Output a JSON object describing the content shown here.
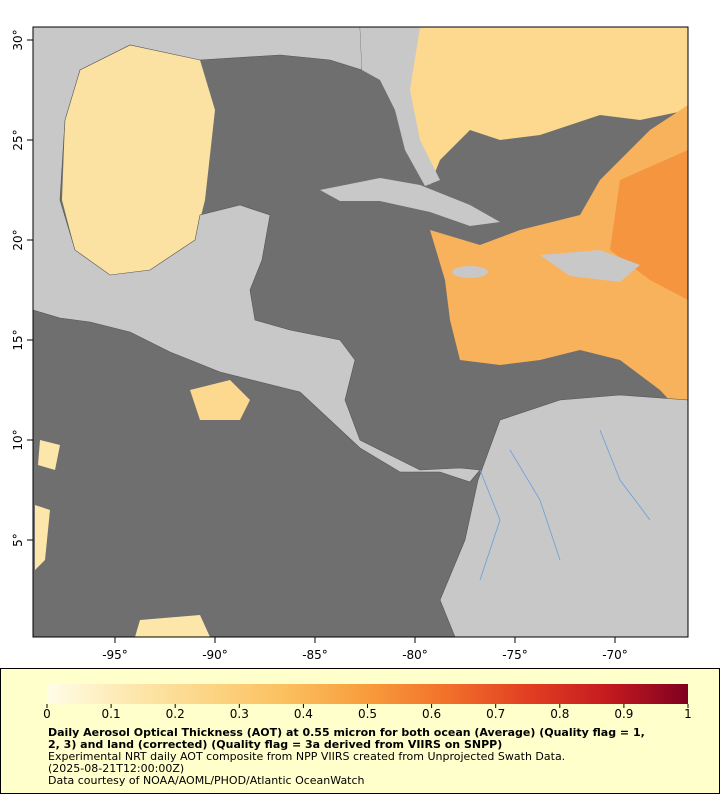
{
  "map": {
    "xlim": [
      -99.1,
      -66.35
    ],
    "ylim": [
      0.15,
      30.65
    ],
    "xticks": [
      {
        "value": -95,
        "label": "-95°"
      },
      {
        "value": -90,
        "label": "-90°"
      },
      {
        "value": -85,
        "label": "-85°"
      },
      {
        "value": -80,
        "label": "-80°"
      },
      {
        "value": -75,
        "label": "-75°"
      },
      {
        "value": -70,
        "label": "-70°"
      }
    ],
    "yticks": [
      {
        "value": 5,
        "label": "5°"
      },
      {
        "value": 10,
        "label": "10°"
      },
      {
        "value": 15,
        "label": "15°"
      },
      {
        "value": 20,
        "label": "20°"
      },
      {
        "value": 25,
        "label": "25°"
      },
      {
        "value": 30,
        "label": "30°"
      }
    ]
  },
  "colorbar": {
    "range": [
      0,
      1
    ],
    "ticks": [
      0,
      0.1,
      0.2,
      0.3,
      0.4,
      0.5,
      0.6,
      0.7,
      0.8,
      0.9,
      1
    ],
    "colors": [
      "#fffde8",
      "#fde9b0",
      "#fcd585",
      "#fbbf5e",
      "#f89c3c",
      "#f2702a",
      "#e23f22",
      "#c41a1f",
      "#7f0020"
    ]
  },
  "caption": {
    "title_lines": [
      "Daily Aerosol Optical Thickness (AOT) at 0.55 micron for both ocean (Average) (Quality flag = 1,",
      "2, 3) and land (corrected) (Quality flag = 3a derived from VIIRS on SNPP)"
    ],
    "lines": [
      "Experimental NRT daily AOT composite from NPP VIIRS created from Unprojected Swath Data.",
      "(2025-08-21T12:00:00Z)",
      "Data courtesy of NOAA/AOML/PHOD/Atlantic OceanWatch"
    ]
  }
}
